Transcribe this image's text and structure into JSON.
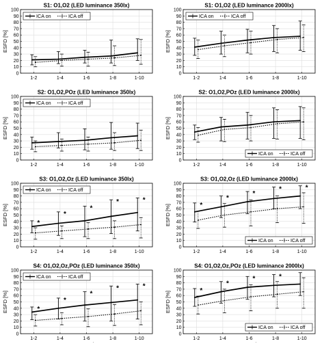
{
  "chart_data": [
    {
      "type": "line",
      "title": "S1: O1,O2 (LED luminance 350lx)",
      "ylabel": "ESFD [%]",
      "xlabel": "",
      "categories": [
        "1-2",
        "1-4",
        "1-6",
        "1-8",
        "1-10"
      ],
      "ylim": [
        0,
        100
      ],
      "yticks": [
        0,
        10,
        20,
        30,
        40,
        50,
        60,
        70,
        80,
        90,
        100
      ],
      "grid": true,
      "legend": "top-left",
      "asterisks": [
        false,
        false,
        false,
        false,
        false
      ],
      "series": [
        {
          "name": "ICA on",
          "style": "solid",
          "values": [
            21,
            22,
            25,
            27,
            32
          ],
          "err_low": [
            13,
            15,
            16,
            16,
            20
          ],
          "err_high": [
            29,
            34,
            36,
            52,
            54
          ]
        },
        {
          "name": "ICA off",
          "style": "dotted",
          "values": [
            17,
            20,
            22,
            24,
            28
          ],
          "err_low": [
            10,
            11,
            11,
            12,
            14
          ],
          "err_high": [
            26,
            30,
            33,
            43,
            53
          ]
        }
      ]
    },
    {
      "type": "line",
      "title": "S1: O1,O2 (LED luminance 2000lx)",
      "ylabel": "ESFD [%]",
      "xlabel": "",
      "categories": [
        "1-2",
        "1-4",
        "1-6",
        "1-8",
        "1-10"
      ],
      "ylim": [
        0,
        100
      ],
      "yticks": [
        0,
        10,
        20,
        30,
        40,
        50,
        60,
        70,
        80,
        90,
        100
      ],
      "grid": true,
      "legend": "top-left",
      "asterisks": [
        false,
        false,
        false,
        false,
        false
      ],
      "series": [
        {
          "name": "ICA on",
          "style": "solid",
          "values": [
            41,
            47,
            52,
            56,
            58
          ],
          "err_low": [
            28,
            30,
            32,
            34,
            36
          ],
          "err_high": [
            55,
            66,
            69,
            75,
            82
          ]
        },
        {
          "name": "ICA off",
          "style": "dotted",
          "values": [
            37,
            43,
            48,
            53,
            56
          ],
          "err_low": [
            23,
            26,
            30,
            32,
            34
          ],
          "err_high": [
            52,
            60,
            66,
            70,
            76
          ]
        }
      ]
    },
    {
      "type": "line",
      "title": "S2: O1,O2,POz (LED luminance 350lx)",
      "ylabel": "ESFD [%]",
      "xlabel": "",
      "categories": [
        "1-2",
        "1-4",
        "1-6",
        "1-8",
        "1-10"
      ],
      "ylim": [
        0,
        100
      ],
      "yticks": [
        0,
        10,
        20,
        30,
        40,
        50,
        60,
        70,
        80,
        90,
        100
      ],
      "grid": true,
      "legend": "top-left",
      "asterisks": [
        false,
        false,
        false,
        false,
        false
      ],
      "series": [
        {
          "name": "ICA on",
          "style": "solid",
          "values": [
            27,
            29,
            31,
            35,
            38
          ],
          "err_low": [
            17,
            19,
            16,
            17,
            18
          ],
          "err_high": [
            36,
            43,
            49,
            59,
            58
          ]
        },
        {
          "name": "ICA off",
          "style": "dotted",
          "values": [
            21,
            23,
            25,
            27,
            31
          ],
          "err_low": [
            13,
            14,
            14,
            15,
            15
          ],
          "err_high": [
            30,
            33,
            36,
            43,
            47
          ]
        }
      ]
    },
    {
      "type": "line",
      "title": "S2: O1,O2,POz (LED luminance 2000lx)",
      "ylabel": "ESFD [%]",
      "xlabel": "",
      "categories": [
        "1-2",
        "1-4",
        "1-6",
        "1-8",
        "1-10"
      ],
      "ylim": [
        0,
        100
      ],
      "yticks": [
        0,
        10,
        20,
        30,
        40,
        50,
        60,
        70,
        80,
        90,
        100
      ],
      "grid": true,
      "legend": "bottom-right",
      "asterisks": [
        false,
        false,
        false,
        false,
        false
      ],
      "series": [
        {
          "name": "ICA on",
          "style": "solid",
          "values": [
            44,
            52,
            55,
            60,
            62
          ],
          "err_low": [
            32,
            30,
            33,
            34,
            34
          ],
          "err_high": [
            55,
            67,
            75,
            82,
            84
          ]
        },
        {
          "name": "ICA off",
          "style": "dotted",
          "values": [
            39,
            48,
            51,
            57,
            60
          ],
          "err_low": [
            28,
            29,
            30,
            33,
            32
          ],
          "err_high": [
            51,
            64,
            70,
            79,
            82
          ]
        }
      ]
    },
    {
      "type": "line",
      "title": "S3: O1,O2,Oz (LED luminance 350lx)",
      "ylabel": "ESFD [%]",
      "xlabel": "",
      "categories": [
        "1-2",
        "1-4",
        "1-6",
        "1-8",
        "1-10"
      ],
      "ylim": [
        0,
        100
      ],
      "yticks": [
        0,
        10,
        20,
        30,
        40,
        50,
        60,
        70,
        80,
        90,
        100
      ],
      "grid": true,
      "legend": "top-left",
      "asterisks": [
        true,
        true,
        true,
        true,
        true
      ],
      "series": [
        {
          "name": "ICA on",
          "style": "solid",
          "values": [
            32,
            37,
            41,
            48,
            54
          ],
          "err_low": [
            22,
            18,
            16,
            21,
            25
          ],
          "err_high": [
            41,
            55,
            64,
            74,
            77
          ]
        },
        {
          "name": "ICA off",
          "style": "dotted",
          "values": [
            22,
            25,
            28,
            31,
            35
          ],
          "err_low": [
            12,
            13,
            13,
            13,
            14
          ],
          "err_high": [
            30,
            33,
            38,
            41,
            46
          ]
        }
      ]
    },
    {
      "type": "line",
      "title": "S3: O1,O2,Oz (LED luminance 2000lx)",
      "ylabel": "ESFD [%]",
      "xlabel": "",
      "categories": [
        "1-2",
        "1-4",
        "1-6",
        "1-8",
        "1-10"
      ],
      "ylim": [
        0,
        100
      ],
      "yticks": [
        0,
        10,
        20,
        30,
        40,
        50,
        60,
        70,
        80,
        90,
        100
      ],
      "grid": true,
      "legend": "bottom-right",
      "asterisks": [
        true,
        true,
        true,
        true,
        true
      ],
      "series": [
        {
          "name": "ICA on",
          "style": "solid",
          "values": [
            55,
            63,
            71,
            76,
            80
          ],
          "err_low": [
            39,
            46,
            52,
            60,
            60
          ],
          "err_high": [
            69,
            80,
            87,
            94,
            96
          ]
        },
        {
          "name": "ICA off",
          "style": "dotted",
          "values": [
            42,
            50,
            55,
            60,
            63
          ],
          "err_low": [
            29,
            31,
            33,
            38,
            37
          ],
          "err_high": [
            56,
            68,
            74,
            80,
            85
          ]
        }
      ]
    },
    {
      "type": "line",
      "title": "S4: O1,O2,Oz,POz (LED luminance 350lx)",
      "ylabel": "ESFD [%]",
      "xlabel": "Seconds",
      "categories": [
        "1-2",
        "1-4",
        "1-6",
        "1-8",
        "1-10"
      ],
      "ylim": [
        0,
        100
      ],
      "yticks": [
        0,
        10,
        20,
        30,
        40,
        50,
        60,
        70,
        80,
        90,
        100
      ],
      "grid": true,
      "legend": "top-left",
      "asterisks": [
        true,
        true,
        true,
        true,
        true
      ],
      "series": [
        {
          "name": "ICA on",
          "style": "solid",
          "values": [
            34,
            40,
            45,
            49,
            53
          ],
          "err_low": [
            22,
            23,
            20,
            20,
            23
          ],
          "err_high": [
            42,
            56,
            66,
            75,
            78
          ]
        },
        {
          "name": "ICA off",
          "style": "dotted",
          "values": [
            21,
            24,
            27,
            31,
            36
          ],
          "err_low": [
            12,
            14,
            11,
            13,
            14
          ],
          "err_high": [
            30,
            33,
            39,
            46,
            50
          ]
        }
      ]
    },
    {
      "type": "line",
      "title": "S4: O1,O2,Oz,POz (LED luminance 2000lx)",
      "ylabel": "ESFD [%]",
      "xlabel": "Seconds",
      "categories": [
        "1-2",
        "1-4",
        "1-6",
        "1-8",
        "1-10"
      ],
      "ylim": [
        0,
        100
      ],
      "yticks": [
        0,
        10,
        20,
        30,
        40,
        50,
        60,
        70,
        80,
        90,
        100
      ],
      "grid": true,
      "legend": "bottom-right",
      "asterisks": [
        true,
        true,
        true,
        true,
        false
      ],
      "series": [
        {
          "name": "ICA on",
          "style": "solid",
          "values": [
            57,
            66,
            73,
            76,
            78
          ],
          "err_low": [
            43,
            48,
            54,
            58,
            60
          ],
          "err_high": [
            71,
            82,
            90,
            93,
            96
          ]
        },
        {
          "name": "ICA off",
          "style": "dotted",
          "values": [
            45,
            52,
            58,
            62,
            66
          ],
          "err_low": [
            31,
            33,
            36,
            40,
            40
          ],
          "err_high": [
            59,
            70,
            77,
            82,
            88
          ]
        }
      ]
    }
  ]
}
